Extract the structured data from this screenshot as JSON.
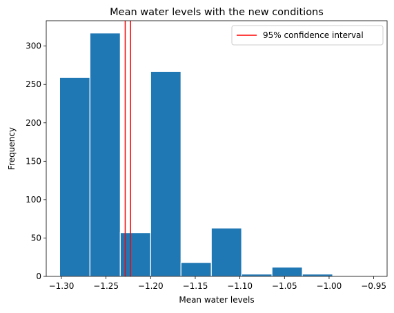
{
  "chart_data": {
    "type": "bar",
    "title": "Mean water levels with the new conditions",
    "xlabel": "Mean water levels",
    "ylabel": "Frequency",
    "xlim": [
      -1.317,
      -0.935
    ],
    "ylim": [
      0,
      333
    ],
    "bins": [
      {
        "x0": -1.302,
        "x1": -1.268,
        "value": 259
      },
      {
        "x0": -1.268,
        "x1": -1.234,
        "value": 317
      },
      {
        "x0": -1.234,
        "x1": -1.2,
        "value": 57
      },
      {
        "x0": -1.2,
        "x1": -1.166,
        "value": 267
      },
      {
        "x0": -1.166,
        "x1": -1.132,
        "value": 18
      },
      {
        "x0": -1.132,
        "x1": -1.098,
        "value": 63
      },
      {
        "x0": -1.098,
        "x1": -1.064,
        "value": 3
      },
      {
        "x0": -1.064,
        "x1": -1.03,
        "value": 12
      },
      {
        "x0": -1.03,
        "x1": -0.996,
        "value": 3
      }
    ],
    "confidence_interval": [
      -1.2285,
      -1.2225
    ],
    "x_ticks": [
      -1.3,
      -1.25,
      -1.2,
      -1.15,
      -1.1,
      -1.05,
      -1.0,
      -0.95
    ],
    "x_tick_labels": [
      "−1.30",
      "−1.25",
      "−1.20",
      "−1.15",
      "−1.10",
      "−1.05",
      "−1.00",
      "−0.95"
    ],
    "y_ticks": [
      0,
      50,
      100,
      150,
      200,
      250,
      300
    ],
    "y_tick_labels": [
      "0",
      "50",
      "100",
      "150",
      "200",
      "250",
      "300"
    ],
    "legend": {
      "label": "95% confidence interval",
      "placement": "top-right"
    },
    "grid": false,
    "colors": {
      "bar": "#1f77b4",
      "bar_edge": "#ffffff",
      "ci_line": "#ff0000"
    }
  }
}
